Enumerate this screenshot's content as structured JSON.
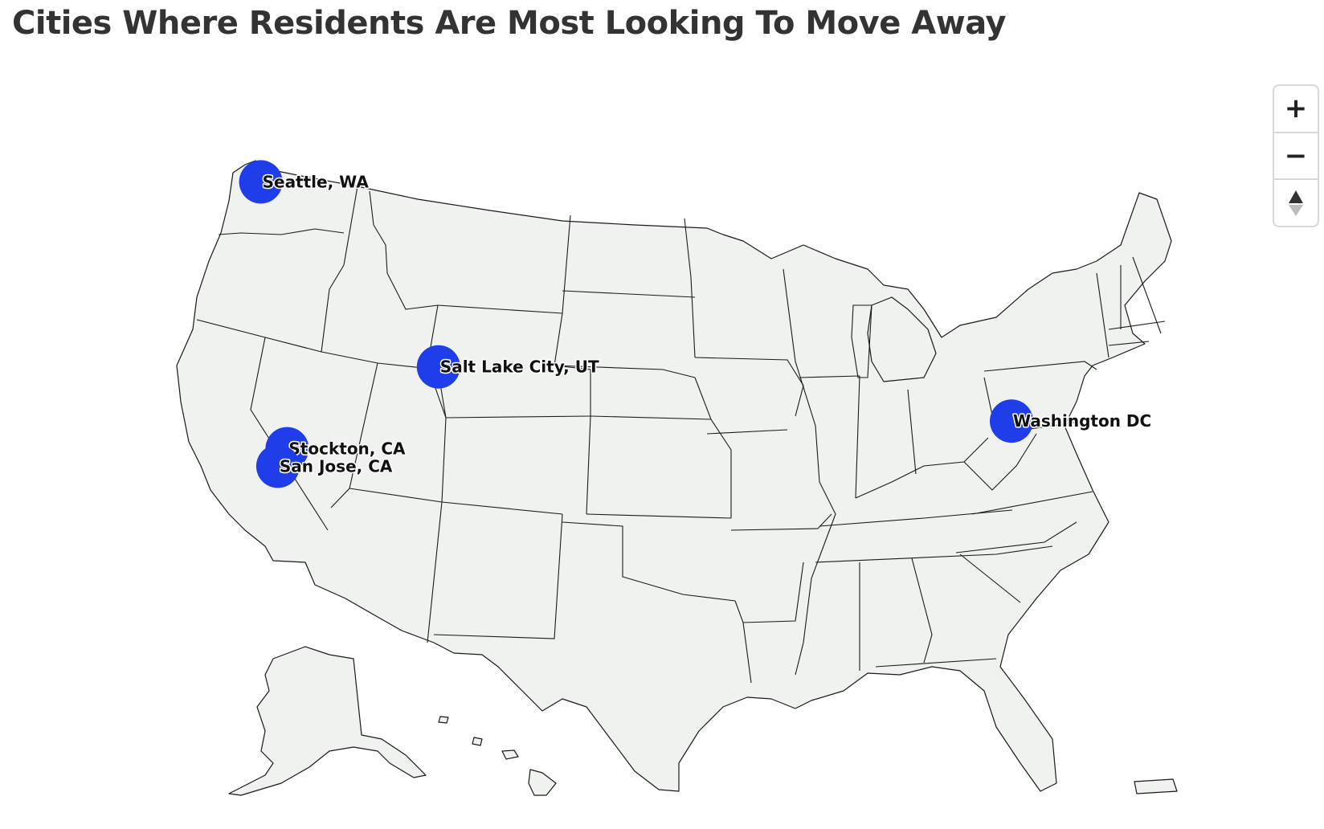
{
  "title": "Cities Where Residents Are Most Looking To Move Away",
  "colors": {
    "bubble": "#1f3de8",
    "land": "#eff2ef",
    "border": "#1a1a1a",
    "title": "#333333"
  },
  "map": {
    "projection": "albers-usa",
    "cities": [
      {
        "name": "Seattle, WA",
        "lon": -122.33,
        "lat": 47.61
      },
      {
        "name": "Stockton, CA",
        "lon": -121.29,
        "lat": 37.96
      },
      {
        "name": "San Jose, CA",
        "lon": -121.89,
        "lat": 37.34
      },
      {
        "name": "Salt Lake City, UT",
        "lon": -111.89,
        "lat": 40.76
      },
      {
        "name": "Washington DC",
        "lon": -77.04,
        "lat": 38.91
      }
    ]
  },
  "controls": {
    "zoom_in": "+",
    "zoom_out": "−",
    "reset_icon": "compass-reset-icon"
  }
}
